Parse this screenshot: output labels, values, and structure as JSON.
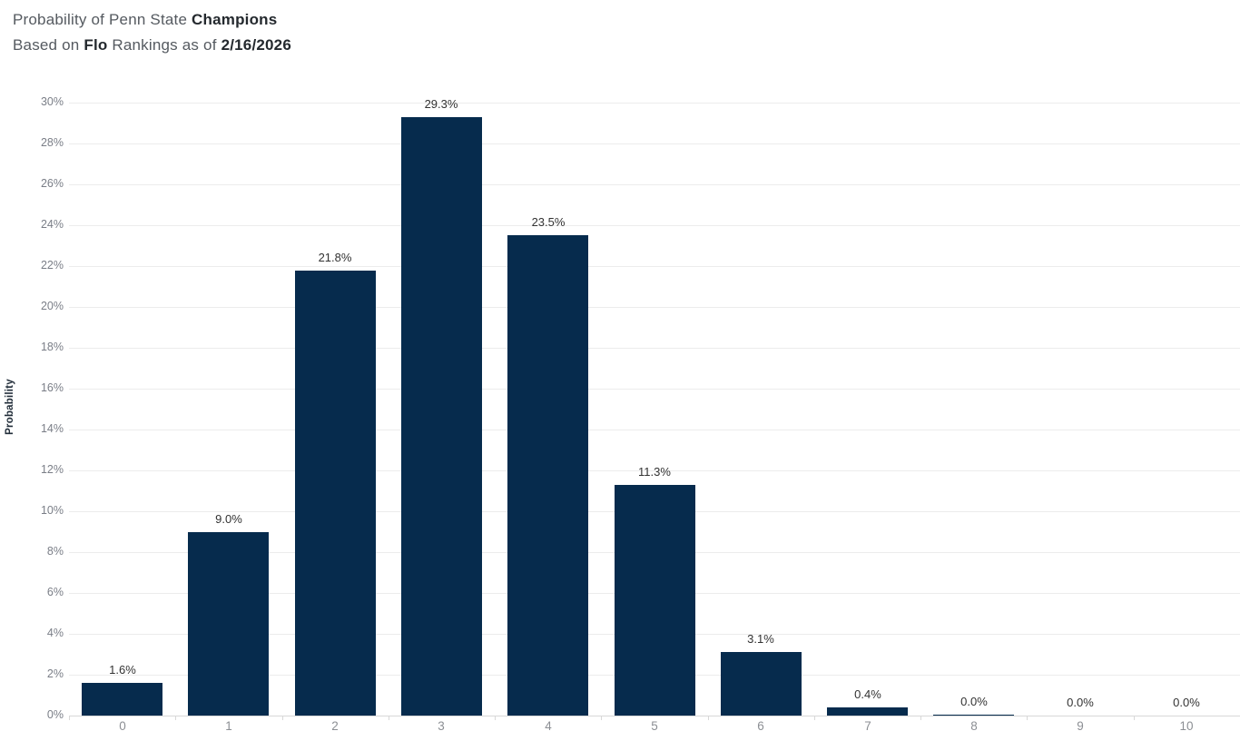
{
  "title": {
    "line1_prefix": "Probability of Penn State ",
    "line1_bold": "Champions",
    "line2_prefix": "Based on ",
    "line2_bold1": "Flo",
    "line2_middle": " Rankings as of ",
    "line2_bold2": "2/16/2026"
  },
  "chart_data": {
    "type": "bar",
    "title": "Probability of Penn State Champions",
    "subtitle": "Based on Flo Rankings as of 2/16/2026",
    "categories": [
      "0",
      "1",
      "2",
      "3",
      "4",
      "5",
      "6",
      "7",
      "8",
      "9",
      "10"
    ],
    "values": [
      1.6,
      9.0,
      21.8,
      29.3,
      23.5,
      11.3,
      3.1,
      0.4,
      0.05,
      0.0,
      0.0
    ],
    "bar_labels": [
      "1.6%",
      "9.0%",
      "21.8%",
      "29.3%",
      "23.5%",
      "11.3%",
      "3.1%",
      "0.4%",
      "0.0%",
      "0.0%",
      "0.0%"
    ],
    "xlabel": "",
    "ylabel": "Probability",
    "ylim": [
      0,
      30
    ],
    "ytick_step": 2,
    "ytick_labels": [
      "0%",
      "2%",
      "4%",
      "6%",
      "8%",
      "10%",
      "12%",
      "14%",
      "16%",
      "18%",
      "20%",
      "22%",
      "24%",
      "26%",
      "28%",
      "30%"
    ],
    "grid": true,
    "legend": "none",
    "bar_color": "#062b4d"
  },
  "colors": {
    "bar": "#062b4d",
    "gridline": "#ececec",
    "axis_line": "#d8d8d8",
    "y_tick_text": "#7a7e87",
    "x_tick_text": "#8c8f94",
    "value_label_text": "#323232",
    "title_regular": "#555a60",
    "title_bold": "#24292e"
  }
}
